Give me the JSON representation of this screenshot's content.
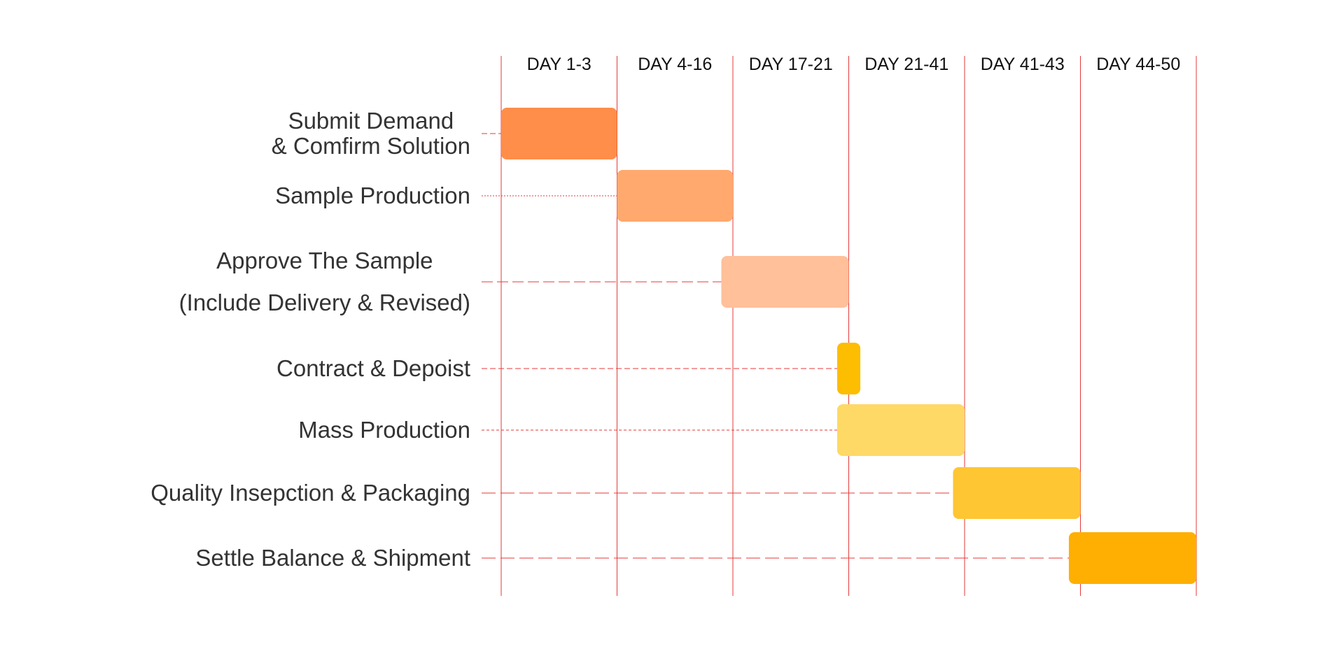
{
  "chart_data": {
    "type": "gantt",
    "columns": [
      "DAY 1-3",
      "DAY 4-16",
      "DAY 17-21",
      "DAY 21-41",
      "DAY 41-43",
      "DAY 44-50"
    ],
    "tasks": [
      {
        "lines": [
          "Submit Demand",
          "& Comfirm Solution"
        ],
        "start": 0.0,
        "end": 1.0,
        "color": "#FF8E4A",
        "dash": "8,4"
      },
      {
        "lines": [
          "Sample Production"
        ],
        "start": 1.0,
        "end": 2.0,
        "color": "#FFA96E",
        "dash": "2,2"
      },
      {
        "lines": [
          "Approve The Sample",
          "(Include Delivery & Revised)"
        ],
        "start": 1.9,
        "end": 3.0,
        "color": "#FFC09A",
        "dash": "16,6"
      },
      {
        "lines": [
          "Contract & Depoist"
        ],
        "start": 2.9,
        "end": 3.1,
        "color": "#FDBD00",
        "dash": "8,4"
      },
      {
        "lines": [
          "Mass Production"
        ],
        "start": 2.9,
        "end": 4.0,
        "color": "#FED966",
        "dash": "4,3"
      },
      {
        "lines": [
          "Quality Insepction & Packaging"
        ],
        "start": 3.9,
        "end": 5.0,
        "color": "#FEC632",
        "dash": "20,7"
      },
      {
        "lines": [
          "Settle Balance & Shipment"
        ],
        "start": 4.9,
        "end": 6.0,
        "color": "#FEAF02",
        "dash": "20,7"
      }
    ],
    "gridline_color": "#E4393A",
    "connector_color": "#E4393A"
  }
}
